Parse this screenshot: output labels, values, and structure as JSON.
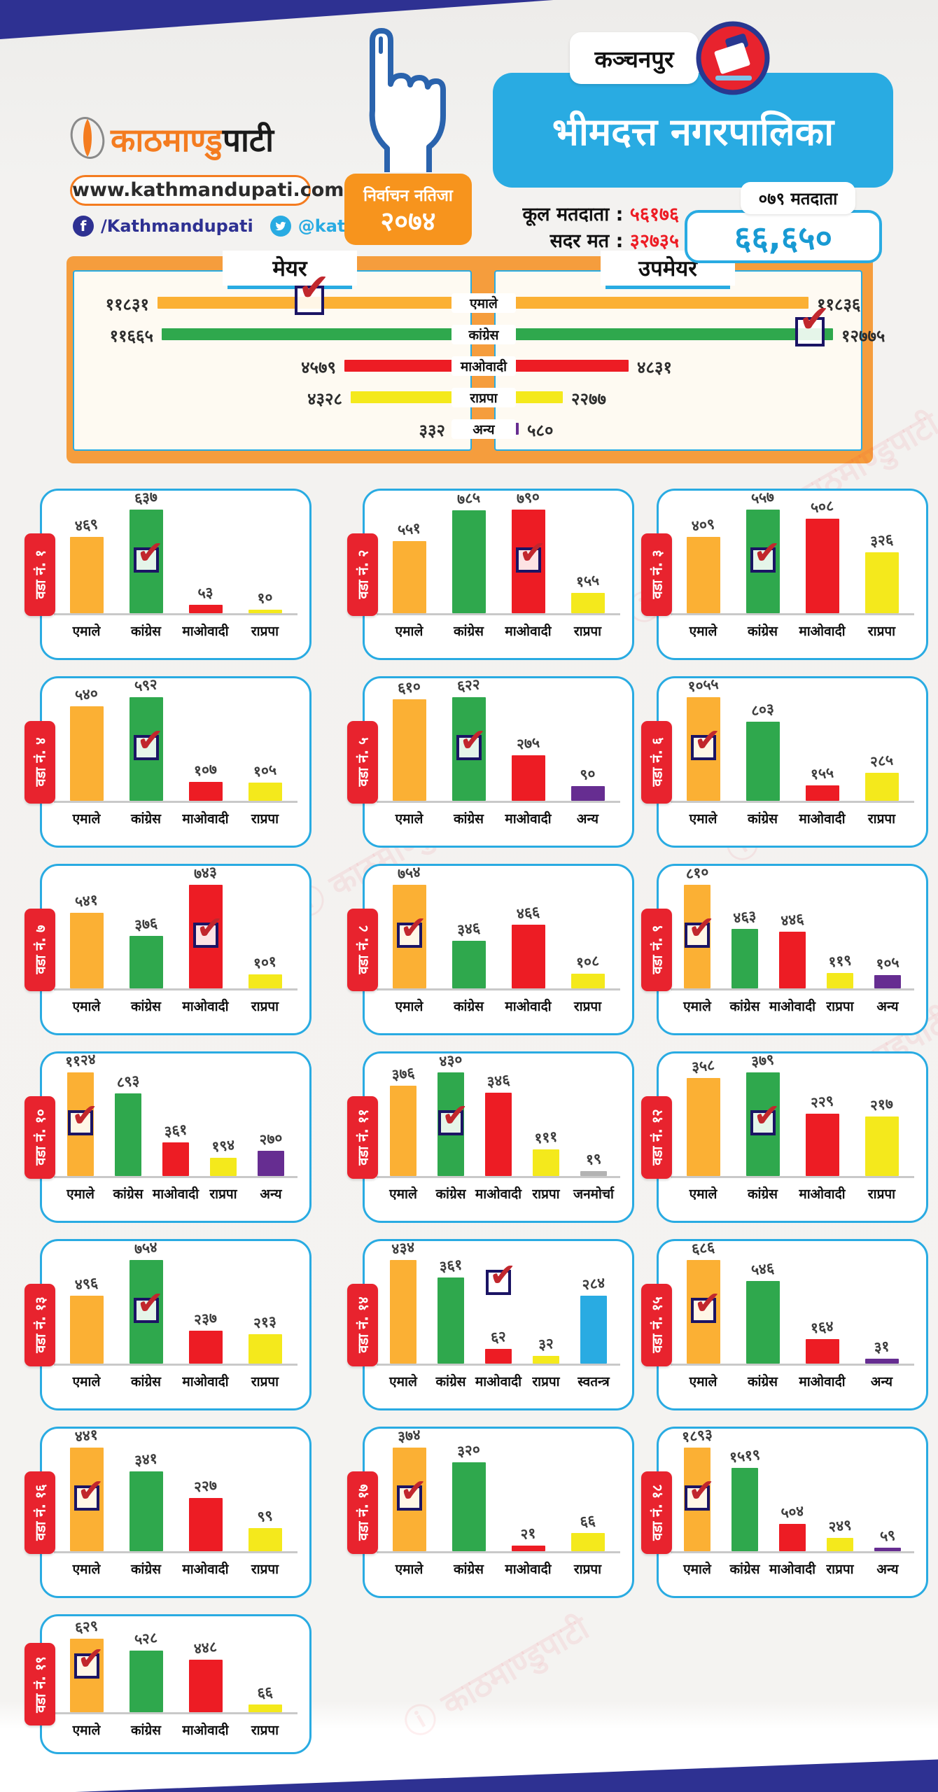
{
  "header": {
    "brand": {
      "name_orange": "काठमाण्डु",
      "name_black": "पाटी",
      "website": "www.kathmandupati.com",
      "facebook": "/Kathmandupati",
      "twitter": "@kathmandupati1"
    },
    "badge": {
      "line1": "निर्वाचन नतिजा",
      "line2": "२०७४"
    },
    "district": "कञ्चनपुर",
    "title": "भीमदत्त नगरपालिका",
    "total_voters_label": "कूल मतदाता :",
    "total_voters": "५६१७६",
    "valid_votes_label": "सदर मत :",
    "valid_votes": "३२७३५",
    "voters_079_label": "०७९ मतदाता",
    "voters_079_value": "६६,६५०"
  },
  "watermark": "काठमाण्डुपाटी",
  "colors": {
    "navy": "#2e3192",
    "accent_blue": "#29abe2",
    "orange": "#f7941d",
    "badge_red": "#e8232e",
    "check_box": "#1b1464",
    "check_mark": "#c1272d",
    "party": {
      "एमाले": "#fbb034",
      "कांग्रेस": "#2fa84d",
      "माओवादी": "#ed1c24",
      "राप्रपा": "#f4e91c",
      "अन्य": "#662d91",
      "स्वतन्त्र": "#29abe2",
      "जनमोर्चा": "#b3b3b3"
    }
  },
  "chart_data": [
    {
      "type": "bar",
      "orientation": "horizontal-left",
      "title": "मेयर",
      "categories": [
        "एमाले",
        "कांग्रेस",
        "माओवादी",
        "राप्रपा",
        "अन्य"
      ],
      "values": [
        11831,
        11665,
        4579,
        4328,
        332
      ],
      "value_labels": [
        "११८३१",
        "११६६५",
        "४५७९",
        "४३२८",
        "३३२"
      ],
      "winner_index": 0,
      "xlim": [
        0,
        12775
      ]
    },
    {
      "type": "bar",
      "orientation": "horizontal-right",
      "title": "उपमेयर",
      "categories": [
        "एमाले",
        "कांग्रेस",
        "माओवादी",
        "राप्रपा",
        "अन्य"
      ],
      "values": [
        11836,
        12775,
        4831,
        2277,
        580
      ],
      "value_labels": [
        "११८३६",
        "१२७७५",
        "४८३१",
        "२२७७",
        "५८०"
      ],
      "winner_index": 1,
      "xlim": [
        0,
        12775
      ]
    },
    {
      "type": "bar",
      "title": "वडा नं. १",
      "categories": [
        "एमाले",
        "कांग्रेस",
        "माओवादी",
        "राप्रपा"
      ],
      "values": [
        469,
        637,
        53,
        10
      ],
      "value_labels": [
        "४६९",
        "६३७",
        "५३",
        "१०"
      ],
      "winner_index": 1
    },
    {
      "type": "bar",
      "title": "वडा नं. २",
      "categories": [
        "एमाले",
        "कांग्रेस",
        "माओवादी",
        "राप्रपा"
      ],
      "values": [
        551,
        785,
        790,
        155
      ],
      "value_labels": [
        "५५१",
        "७८५",
        "७९०",
        "१५५"
      ],
      "winner_index": 2
    },
    {
      "type": "bar",
      "title": "वडा नं. ३",
      "categories": [
        "एमाले",
        "कांग्रेस",
        "माओवादी",
        "राप्रपा"
      ],
      "values": [
        409,
        557,
        508,
        326
      ],
      "value_labels": [
        "४०९",
        "५५७",
        "५०८",
        "३२६"
      ],
      "winner_index": 1
    },
    {
      "type": "bar",
      "title": "वडा नं. ४",
      "categories": [
        "एमाले",
        "कांग्रेस",
        "माओवादी",
        "राप्रपा"
      ],
      "values": [
        540,
        592,
        107,
        105
      ],
      "value_labels": [
        "५४०",
        "५९२",
        "१०७",
        "१०५"
      ],
      "winner_index": 1
    },
    {
      "type": "bar",
      "title": "वडा नं. ५",
      "categories": [
        "एमाले",
        "कांग्रेस",
        "माओवादी",
        "अन्य"
      ],
      "values": [
        610,
        622,
        275,
        90
      ],
      "value_labels": [
        "६१०",
        "६२२",
        "२७५",
        "९०"
      ],
      "winner_index": 1
    },
    {
      "type": "bar",
      "title": "वडा नं. ६",
      "categories": [
        "एमाले",
        "कांग्रेस",
        "माओवादी",
        "राप्रपा"
      ],
      "values": [
        1055,
        803,
        155,
        285
      ],
      "value_labels": [
        "१०५५",
        "८०३",
        "१५५",
        "२८५"
      ],
      "winner_index": 0
    },
    {
      "type": "bar",
      "title": "वडा नं. ७",
      "categories": [
        "एमाले",
        "कांग्रेस",
        "माओवादी",
        "राप्रपा"
      ],
      "values": [
        541,
        376,
        743,
        101
      ],
      "value_labels": [
        "५४१",
        "३७६",
        "७४३",
        "१०१"
      ],
      "winner_index": 2
    },
    {
      "type": "bar",
      "title": "वडा नं. ८",
      "categories": [
        "एमाले",
        "कांग्रेस",
        "माओवादी",
        "राप्रपा"
      ],
      "values": [
        754,
        346,
        466,
        108
      ],
      "value_labels": [
        "७५४",
        "३४६",
        "४६६",
        "१०८"
      ],
      "winner_index": 0
    },
    {
      "type": "bar",
      "title": "वडा नं. ९",
      "categories": [
        "एमाले",
        "कांग्रेस",
        "माओवादी",
        "राप्रपा",
        "अन्य"
      ],
      "values": [
        810,
        463,
        446,
        119,
        105
      ],
      "value_labels": [
        "८१०",
        "४६३",
        "४४६",
        "११९",
        "१०५"
      ],
      "winner_index": 0
    },
    {
      "type": "bar",
      "title": "वडा नं. १०",
      "categories": [
        "एमाले",
        "कांग्रेस",
        "माओवादी",
        "राप्रपा",
        "अन्य"
      ],
      "values": [
        1124,
        893,
        361,
        194,
        270
      ],
      "value_labels": [
        "११२४",
        "८९३",
        "३६१",
        "१९४",
        "२७०"
      ],
      "winner_index": 0
    },
    {
      "type": "bar",
      "title": "वडा नं. ११",
      "categories": [
        "एमाले",
        "कांग्रेस",
        "माओवादी",
        "राप्रपा",
        "जनमोर्चा"
      ],
      "values": [
        376,
        430,
        346,
        111,
        19
      ],
      "value_labels": [
        "३७६",
        "४३०",
        "३४६",
        "१११",
        "१९"
      ],
      "winner_index": 1
    },
    {
      "type": "bar",
      "title": "वडा नं. १२",
      "categories": [
        "एमाले",
        "कांग्रेस",
        "माओवादी",
        "राप्रपा"
      ],
      "values": [
        358,
        379,
        229,
        217
      ],
      "value_labels": [
        "३५८",
        "३७९",
        "२२९",
        "२१७"
      ],
      "winner_index": 1
    },
    {
      "type": "bar",
      "title": "वडा नं. १३",
      "categories": [
        "एमाले",
        "कांग्रेस",
        "माओवादी",
        "राप्रपा"
      ],
      "values": [
        496,
        754,
        237,
        213
      ],
      "value_labels": [
        "४९६",
        "७५४",
        "२३७",
        "२१३"
      ],
      "winner_index": 1
    },
    {
      "type": "bar",
      "title": "वडा नं. १४",
      "categories": [
        "एमाले",
        "कांग्रेस",
        "माओवादी",
        "राप्रपा",
        "स्वतन्त्र"
      ],
      "values": [
        434,
        361,
        62,
        32,
        284
      ],
      "value_labels": [
        "४३४",
        "३६१",
        "६२",
        "३२",
        "२८४"
      ],
      "winner_index": 2,
      "check_raised": true
    },
    {
      "type": "bar",
      "title": "वडा नं. १५",
      "categories": [
        "एमाले",
        "कांग्रेस",
        "माओवादी",
        "अन्य"
      ],
      "values": [
        686,
        546,
        164,
        31
      ],
      "value_labels": [
        "६८६",
        "५४६",
        "१६४",
        "३१"
      ],
      "winner_index": 0
    },
    {
      "type": "bar",
      "title": "वडा नं. १६",
      "categories": [
        "एमाले",
        "कांग्रेस",
        "माओवादी",
        "राप्रपा"
      ],
      "values": [
        441,
        341,
        227,
        99
      ],
      "value_labels": [
        "४४१",
        "३४१",
        "२२७",
        "९९"
      ],
      "winner_index": 0
    },
    {
      "type": "bar",
      "title": "वडा नं. १७",
      "categories": [
        "एमाले",
        "कांग्रेस",
        "माओवादी",
        "राप्रपा"
      ],
      "values": [
        374,
        320,
        21,
        66
      ],
      "value_labels": [
        "३७४",
        "३२०",
        "२१",
        "६६"
      ],
      "winner_index": 0
    },
    {
      "type": "bar",
      "title": "वडा नं. १८",
      "categories": [
        "एमाले",
        "कांग्रेस",
        "माओवादी",
        "राप्रपा",
        "अन्य"
      ],
      "values": [
        1893,
        1519,
        504,
        249,
        59
      ],
      "value_labels": [
        "१८९३",
        "१५१९",
        "५०४",
        "२४९",
        "५९"
      ],
      "winner_index": 0
    },
    {
      "type": "bar",
      "title": "वडा नं. १९",
      "categories": [
        "एमाले",
        "कांग्रेस",
        "माओवादी",
        "राप्रपा"
      ],
      "values": [
        629,
        528,
        448,
        66
      ],
      "value_labels": [
        "६२९",
        "५२८",
        "४४८",
        "६६"
      ],
      "winner_index": 0
    }
  ]
}
